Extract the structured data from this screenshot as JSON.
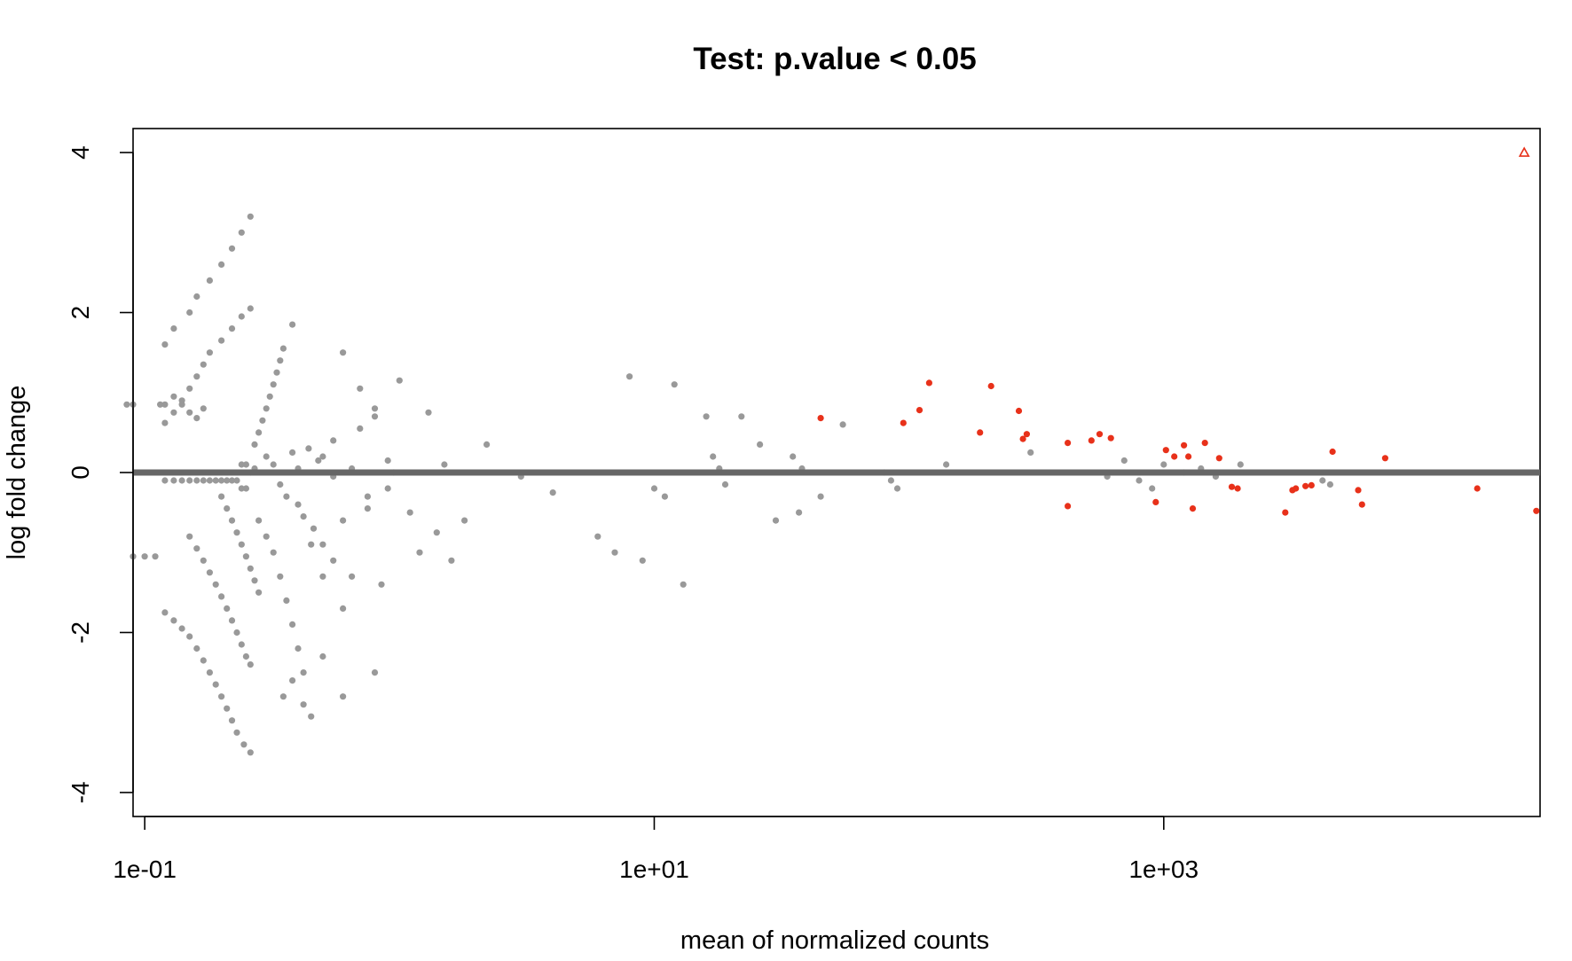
{
  "chart_data": {
    "type": "scatter",
    "title": "Test: p.value < 0.05",
    "xlabel": "mean of normalized counts",
    "ylabel": "log fold change",
    "x_scale": "log10",
    "xlim": [
      0.09,
      30000
    ],
    "ylim": [
      -4.3,
      4.3
    ],
    "x_ticks": [
      {
        "value": 0.1,
        "label": "1e-01"
      },
      {
        "value": 10,
        "label": "1e+01"
      },
      {
        "value": 1000,
        "label": "1e+03"
      }
    ],
    "y_ticks": [
      {
        "value": -4,
        "label": "-4"
      },
      {
        "value": -2,
        "label": "-2"
      },
      {
        "value": 0,
        "label": "0"
      },
      {
        "value": 2,
        "label": "2"
      },
      {
        "value": 4,
        "label": "4"
      }
    ],
    "grid": false,
    "legend": "none",
    "reference_line": {
      "y": 0,
      "color": "#666666"
    },
    "colors": {
      "non_significant": "#999999",
      "significant": "#e8311a"
    },
    "series": [
      {
        "significant": false,
        "points": [
          [
            0.26,
            3.2
          ],
          [
            0.24,
            3.0
          ],
          [
            0.22,
            2.8
          ],
          [
            0.2,
            2.6
          ],
          [
            0.18,
            2.4
          ],
          [
            0.16,
            2.2
          ],
          [
            0.15,
            2.0
          ],
          [
            0.13,
            1.8
          ],
          [
            0.12,
            1.6
          ],
          [
            0.26,
            2.05
          ],
          [
            0.24,
            1.95
          ],
          [
            0.22,
            1.8
          ],
          [
            0.2,
            1.65
          ],
          [
            0.18,
            1.5
          ],
          [
            0.17,
            1.35
          ],
          [
            0.16,
            1.2
          ],
          [
            0.15,
            1.05
          ],
          [
            0.14,
            0.9
          ],
          [
            0.13,
            0.75
          ],
          [
            0.12,
            0.62
          ],
          [
            0.12,
            0.85
          ],
          [
            0.13,
            0.95
          ],
          [
            0.14,
            0.85
          ],
          [
            0.15,
            0.75
          ],
          [
            0.16,
            0.68
          ],
          [
            0.17,
            0.8
          ],
          [
            0.085,
            0.85
          ],
          [
            0.09,
            0.85
          ],
          [
            0.115,
            0.85
          ],
          [
            0.09,
            -1.05
          ],
          [
            0.1,
            -1.05
          ],
          [
            0.11,
            -1.05
          ],
          [
            0.12,
            -0.1
          ],
          [
            0.13,
            -0.1
          ],
          [
            0.14,
            -0.1
          ],
          [
            0.15,
            -0.1
          ],
          [
            0.16,
            -0.1
          ],
          [
            0.17,
            -0.1
          ],
          [
            0.18,
            -0.1
          ],
          [
            0.19,
            -0.1
          ],
          [
            0.2,
            -0.1
          ],
          [
            0.21,
            -0.1
          ],
          [
            0.22,
            -0.1
          ],
          [
            0.23,
            -0.1
          ],
          [
            0.24,
            0.1
          ],
          [
            0.25,
            0.1
          ],
          [
            0.24,
            -0.2
          ],
          [
            0.25,
            -0.2
          ],
          [
            0.26,
            0.0
          ],
          [
            0.27,
            0.05
          ],
          [
            0.12,
            -1.75
          ],
          [
            0.13,
            -1.85
          ],
          [
            0.14,
            -1.95
          ],
          [
            0.15,
            -2.05
          ],
          [
            0.16,
            -2.2
          ],
          [
            0.17,
            -2.35
          ],
          [
            0.18,
            -2.5
          ],
          [
            0.19,
            -2.65
          ],
          [
            0.2,
            -2.8
          ],
          [
            0.21,
            -2.95
          ],
          [
            0.22,
            -3.1
          ],
          [
            0.23,
            -3.25
          ],
          [
            0.245,
            -3.4
          ],
          [
            0.26,
            -3.5
          ],
          [
            0.15,
            -0.8
          ],
          [
            0.16,
            -0.95
          ],
          [
            0.17,
            -1.1
          ],
          [
            0.18,
            -1.25
          ],
          [
            0.19,
            -1.4
          ],
          [
            0.2,
            -1.55
          ],
          [
            0.21,
            -1.7
          ],
          [
            0.22,
            -1.85
          ],
          [
            0.23,
            -2.0
          ],
          [
            0.24,
            -2.15
          ],
          [
            0.25,
            -2.3
          ],
          [
            0.26,
            -2.4
          ],
          [
            0.2,
            -0.3
          ],
          [
            0.21,
            -0.45
          ],
          [
            0.22,
            -0.6
          ],
          [
            0.23,
            -0.75
          ],
          [
            0.24,
            -0.9
          ],
          [
            0.25,
            -1.05
          ],
          [
            0.26,
            -1.2
          ],
          [
            0.27,
            -1.35
          ],
          [
            0.28,
            -1.5
          ],
          [
            0.27,
            0.35
          ],
          [
            0.28,
            0.5
          ],
          [
            0.29,
            0.65
          ],
          [
            0.3,
            0.8
          ],
          [
            0.31,
            0.95
          ],
          [
            0.32,
            1.1
          ],
          [
            0.33,
            1.25
          ],
          [
            0.34,
            1.4
          ],
          [
            0.35,
            1.55
          ],
          [
            0.38,
            1.85
          ],
          [
            0.28,
            -0.6
          ],
          [
            0.3,
            -0.8
          ],
          [
            0.32,
            -1.0
          ],
          [
            0.34,
            -1.3
          ],
          [
            0.36,
            -1.6
          ],
          [
            0.38,
            -1.9
          ],
          [
            0.4,
            -2.2
          ],
          [
            0.42,
            -2.5
          ],
          [
            0.3,
            0.2
          ],
          [
            0.32,
            0.1
          ],
          [
            0.34,
            -0.15
          ],
          [
            0.36,
            -0.3
          ],
          [
            0.38,
            0.25
          ],
          [
            0.4,
            -0.4
          ],
          [
            0.42,
            -0.55
          ],
          [
            0.44,
            0.3
          ],
          [
            0.46,
            -0.7
          ],
          [
            0.48,
            0.15
          ],
          [
            0.35,
            -2.8
          ],
          [
            0.38,
            -2.6
          ],
          [
            0.42,
            -2.9
          ],
          [
            0.45,
            -3.05
          ],
          [
            0.5,
            -2.3
          ],
          [
            0.6,
            -2.8
          ],
          [
            0.5,
            -0.9
          ],
          [
            0.55,
            -1.1
          ],
          [
            0.6,
            -0.6
          ],
          [
            0.65,
            -1.3
          ],
          [
            0.7,
            0.55
          ],
          [
            0.75,
            -0.45
          ],
          [
            0.8,
            0.7
          ],
          [
            0.85,
            -1.4
          ],
          [
            0.9,
            -0.2
          ],
          [
            0.95,
            0.0
          ],
          [
            0.5,
            0.2
          ],
          [
            0.55,
            0.4
          ],
          [
            0.6,
            1.5
          ],
          [
            0.7,
            1.05
          ],
          [
            0.75,
            -0.3
          ],
          [
            0.8,
            0.8
          ],
          [
            0.9,
            0.15
          ],
          [
            1.0,
            1.15
          ],
          [
            1.1,
            -0.5
          ],
          [
            1.2,
            -1.0
          ],
          [
            1.3,
            0.75
          ],
          [
            1.4,
            -0.75
          ],
          [
            1.5,
            0.1
          ],
          [
            1.6,
            -1.1
          ],
          [
            1.8,
            -0.6
          ],
          [
            0.8,
            -2.5
          ],
          [
            0.6,
            -1.7
          ],
          [
            0.5,
            -1.3
          ],
          [
            0.45,
            -0.9
          ],
          [
            0.4,
            0.05
          ],
          [
            0.55,
            -0.05
          ],
          [
            0.65,
            0.05
          ],
          [
            2.2,
            0.35
          ],
          [
            3.0,
            -0.05
          ],
          [
            4.0,
            -0.25
          ],
          [
            6.0,
            -0.8
          ],
          [
            7.0,
            -1.0
          ],
          [
            8.0,
            1.2
          ],
          [
            9.0,
            -1.1
          ],
          [
            10.0,
            -0.2
          ],
          [
            11.0,
            -0.3
          ],
          [
            12.0,
            1.1
          ],
          [
            13.0,
            -1.4
          ],
          [
            16.0,
            0.7
          ],
          [
            17.0,
            0.2
          ],
          [
            18.0,
            0.05
          ],
          [
            19.0,
            -0.15
          ],
          [
            22.0,
            0.7
          ],
          [
            26.0,
            0.35
          ],
          [
            30.0,
            -0.6
          ],
          [
            35.0,
            0.2
          ],
          [
            37.0,
            -0.5
          ],
          [
            38.0,
            0.05
          ],
          [
            45.0,
            -0.3
          ],
          [
            55.0,
            0.6
          ],
          [
            80.0,
            0.0
          ],
          [
            85.0,
            -0.1
          ],
          [
            90.0,
            -0.2
          ],
          [
            140.0,
            0.1
          ],
          [
            300.0,
            0.25
          ],
          [
            600.0,
            -0.05
          ],
          [
            700.0,
            0.15
          ],
          [
            800.0,
            -0.1
          ],
          [
            900.0,
            -0.2
          ],
          [
            1000.0,
            0.1
          ],
          [
            1200.0,
            0.0
          ],
          [
            1400.0,
            0.05
          ],
          [
            1600.0,
            -0.05
          ],
          [
            2000.0,
            0.1
          ],
          [
            4200.0,
            -0.1
          ],
          [
            4500.0,
            -0.15
          ]
        ]
      },
      {
        "significant": true,
        "points": [
          [
            45.0,
            0.68
          ],
          [
            95.0,
            0.62
          ],
          [
            110.0,
            0.78
          ],
          [
            120.0,
            1.12
          ],
          [
            190.0,
            0.5
          ],
          [
            210.0,
            1.08
          ],
          [
            270.0,
            0.77
          ],
          [
            290.0,
            0.48
          ],
          [
            280.0,
            0.42
          ],
          [
            420.0,
            0.37
          ],
          [
            420.0,
            -0.42
          ],
          [
            520.0,
            0.4
          ],
          [
            560.0,
            0.48
          ],
          [
            620.0,
            0.43
          ],
          [
            930.0,
            -0.37
          ],
          [
            1020.0,
            0.28
          ],
          [
            1100.0,
            0.2
          ],
          [
            1200.0,
            0.34
          ],
          [
            1250.0,
            0.2
          ],
          [
            1300.0,
            -0.45
          ],
          [
            1450.0,
            0.37
          ],
          [
            1650.0,
            0.18
          ],
          [
            1850.0,
            -0.18
          ],
          [
            1950.0,
            -0.2
          ],
          [
            3000.0,
            -0.5
          ],
          [
            3200.0,
            -0.22
          ],
          [
            3300.0,
            -0.2
          ],
          [
            3600.0,
            -0.17
          ],
          [
            3800.0,
            -0.16
          ],
          [
            4600.0,
            0.26
          ],
          [
            5800.0,
            -0.22
          ],
          [
            6000.0,
            -0.4
          ],
          [
            7400.0,
            0.18
          ],
          [
            17000.0,
            -0.2
          ],
          [
            29000.0,
            -0.48
          ]
        ]
      }
    ],
    "out_of_range_points": [
      {
        "x": 26000,
        "y": 4.0,
        "marker": "triangle",
        "color": "#e8311a"
      }
    ]
  }
}
